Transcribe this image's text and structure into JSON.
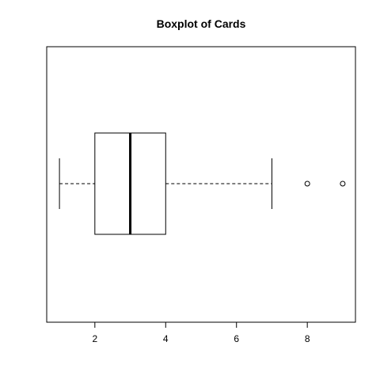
{
  "chart_data": {
    "type": "boxplot",
    "orientation": "horizontal",
    "title": "Boxplot of Cards",
    "xlabel": "",
    "ylabel": "",
    "xlim": [
      0.64,
      9.36
    ],
    "x_ticks": [
      2,
      4,
      6,
      8
    ],
    "x_tick_labels": [
      "2",
      "4",
      "6",
      "8"
    ],
    "grid": false,
    "stats": {
      "whisker_low": 1,
      "q1": 2,
      "median": 3,
      "q3": 4,
      "whisker_high": 7,
      "outliers": [
        8,
        9
      ]
    }
  }
}
